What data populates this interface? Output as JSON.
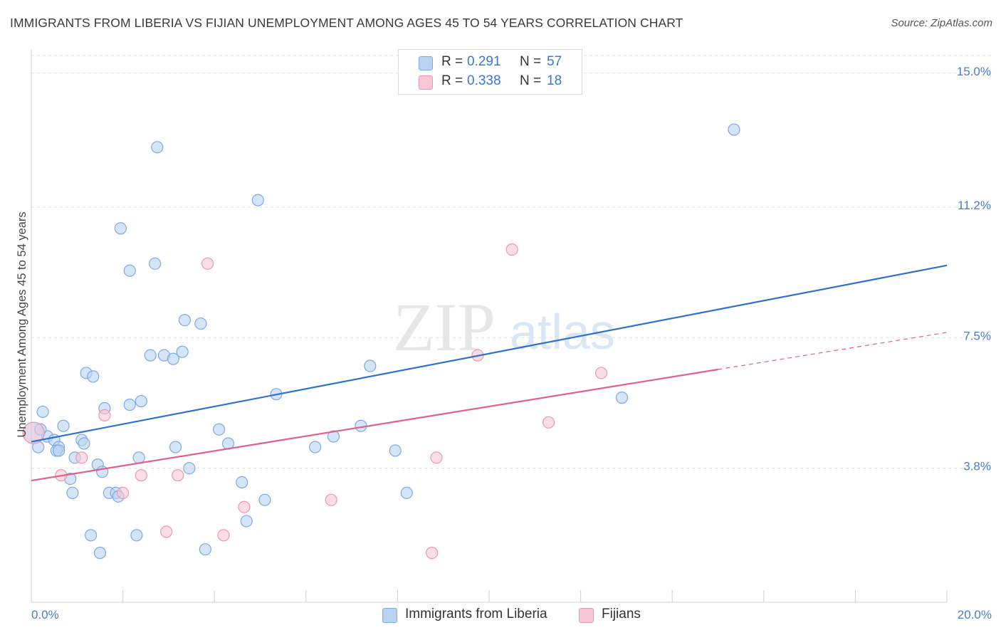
{
  "title": "IMMIGRANTS FROM LIBERIA VS FIJIAN UNEMPLOYMENT AMONG AGES 45 TO 54 YEARS CORRELATION CHART",
  "source": "Source: ZipAtlas.com",
  "watermark": {
    "zip": "ZIP",
    "atlas": "atlas"
  },
  "legend": {
    "rows": [
      {
        "r_label": "R =",
        "r_value": "0.291",
        "n_label": "N =",
        "n_value": "57"
      },
      {
        "r_label": "R =",
        "r_value": "0.338",
        "n_label": "N =",
        "n_value": "18"
      }
    ]
  },
  "bottom_legend": [
    "Immigrants from Liberia",
    "Fijians"
  ],
  "colors": {
    "blue_fill": "#b8d3f2",
    "blue_stroke": "#7fa9df",
    "blue_line": "#2f72cc",
    "pink_fill": "#f7c7d6",
    "pink_stroke": "#ea98b2",
    "pink_line": "#e0608c",
    "grid": "#e2e2e2",
    "tick_text": "#4a7cc9"
  },
  "chart_data": {
    "type": "scatter",
    "title": "IMMIGRANTS FROM LIBERIA VS FIJIAN UNEMPLOYMENT AMONG AGES 45 TO 54 YEARS CORRELATION CHART",
    "xlabel": "",
    "ylabel": "Unemployment Among Ages 45 to 54 years",
    "xlim": [
      0,
      20
    ],
    "ylim": [
      0,
      15.5
    ],
    "y_ticks": [
      3.8,
      7.5,
      11.2,
      15.0
    ],
    "y_tick_labels": [
      "3.8%",
      "7.5%",
      "11.2%",
      "15.0%"
    ],
    "x_tick_labels": [
      "0.0%",
      "20.0%"
    ],
    "series": [
      {
        "name": "Immigrants from Liberia",
        "color": "blue",
        "points": [
          [
            0.05,
            4.8
          ],
          [
            0.15,
            4.4
          ],
          [
            0.25,
            5.4
          ],
          [
            0.35,
            4.7
          ],
          [
            0.5,
            4.6
          ],
          [
            0.6,
            4.4
          ],
          [
            0.55,
            4.3
          ],
          [
            0.7,
            5.0
          ],
          [
            0.6,
            4.3
          ],
          [
            0.85,
            3.5
          ],
          [
            0.9,
            3.1
          ],
          [
            0.95,
            4.1
          ],
          [
            1.1,
            4.6
          ],
          [
            1.15,
            4.5
          ],
          [
            1.2,
            6.5
          ],
          [
            1.35,
            6.4
          ],
          [
            1.45,
            3.9
          ],
          [
            1.55,
            3.7
          ],
          [
            1.6,
            5.5
          ],
          [
            1.7,
            3.1
          ],
          [
            1.85,
            3.1
          ],
          [
            1.9,
            3.0
          ],
          [
            1.3,
            1.9
          ],
          [
            1.5,
            1.4
          ],
          [
            1.95,
            10.6
          ],
          [
            2.15,
            9.4
          ],
          [
            2.15,
            5.6
          ],
          [
            2.35,
            4.1
          ],
          [
            2.4,
            5.7
          ],
          [
            2.6,
            7.0
          ],
          [
            2.7,
            9.6
          ],
          [
            2.75,
            12.9
          ],
          [
            2.9,
            7.0
          ],
          [
            3.1,
            6.9
          ],
          [
            3.15,
            4.4
          ],
          [
            3.3,
            7.1
          ],
          [
            3.35,
            8.0
          ],
          [
            3.45,
            3.8
          ],
          [
            3.7,
            7.9
          ],
          [
            2.3,
            1.9
          ],
          [
            3.8,
            1.5
          ],
          [
            4.1,
            4.9
          ],
          [
            4.3,
            4.5
          ],
          [
            4.6,
            3.4
          ],
          [
            4.7,
            2.3
          ],
          [
            4.95,
            11.4
          ],
          [
            5.1,
            2.9
          ],
          [
            5.35,
            5.9
          ],
          [
            6.2,
            4.4
          ],
          [
            6.6,
            4.7
          ],
          [
            7.2,
            5.0
          ],
          [
            7.4,
            6.7
          ],
          [
            7.95,
            4.3
          ],
          [
            8.2,
            3.1
          ],
          [
            12.9,
            5.8
          ],
          [
            15.35,
            13.4
          ],
          [
            0.2,
            4.9
          ]
        ],
        "trend": {
          "x": [
            0,
            20
          ],
          "y": [
            4.55,
            9.55
          ]
        }
      },
      {
        "name": "Fijians",
        "color": "pink",
        "points": [
          [
            0.05,
            4.8
          ],
          [
            0.65,
            3.6
          ],
          [
            1.1,
            4.1
          ],
          [
            1.6,
            5.3
          ],
          [
            2.0,
            3.1
          ],
          [
            2.4,
            3.6
          ],
          [
            2.95,
            2.0
          ],
          [
            3.2,
            3.6
          ],
          [
            3.85,
            9.6
          ],
          [
            4.2,
            1.9
          ],
          [
            4.65,
            2.7
          ],
          [
            6.55,
            2.9
          ],
          [
            8.75,
            1.4
          ],
          [
            8.85,
            4.1
          ],
          [
            9.75,
            7.0
          ],
          [
            10.5,
            10.0
          ],
          [
            11.3,
            5.1
          ],
          [
            12.45,
            6.5
          ]
        ],
        "trend": {
          "x": [
            0,
            15
          ],
          "y": [
            3.45,
            6.6
          ]
        },
        "trend_extension": {
          "x": [
            15,
            20
          ],
          "y": [
            6.6,
            7.65
          ]
        }
      }
    ]
  }
}
